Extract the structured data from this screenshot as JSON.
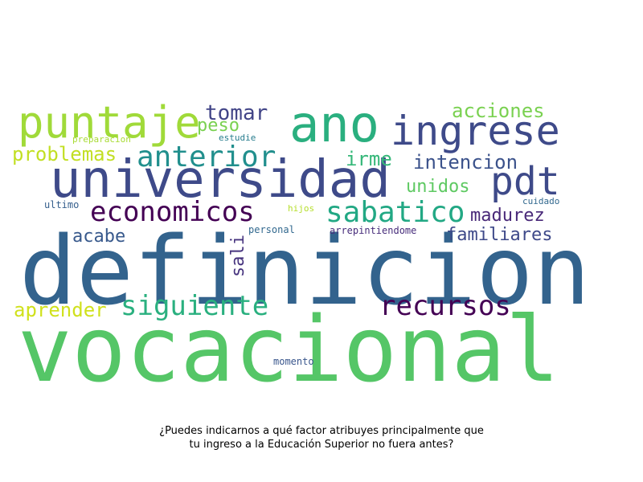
{
  "caption": {
    "line1": "¿Puedes indicarnos a qué factor atribuyes principalmente que",
    "line2": "tu ingreso a la Educación Superior no fuera antes?"
  },
  "words": [
    {
      "id": "definicion",
      "text": "definicion",
      "color": "#33638d"
    },
    {
      "id": "vocacional",
      "text": "vocacional",
      "color": "#55c667"
    },
    {
      "id": "universidad",
      "text": "universidad",
      "color": "#3e4a89"
    },
    {
      "id": "ano",
      "text": "ano",
      "color": "#2aaf7f"
    },
    {
      "id": "puntaje",
      "text": "puntaje",
      "color": "#a0da39"
    },
    {
      "id": "ingrese",
      "text": "ingrese",
      "color": "#3e4a89"
    },
    {
      "id": "pdt",
      "text": "pdt",
      "color": "#3e4a89"
    },
    {
      "id": "anterior",
      "text": "anterior",
      "color": "#218f8d"
    },
    {
      "id": "economicos",
      "text": "economicos",
      "color": "#440154"
    },
    {
      "id": "sabatico",
      "text": "sabatico",
      "color": "#22a884"
    },
    {
      "id": "siguiente",
      "text": "siguiente",
      "color": "#2ab07f"
    },
    {
      "id": "recursos",
      "text": "recursos",
      "color": "#440154"
    },
    {
      "id": "tomar",
      "text": "tomar",
      "color": "#414487"
    },
    {
      "id": "peso",
      "text": "peso",
      "color": "#7ad151"
    },
    {
      "id": "acciones",
      "text": "acciones",
      "color": "#7ad151"
    },
    {
      "id": "problemas",
      "text": "problemas",
      "color": "#c2df23"
    },
    {
      "id": "irme",
      "text": "irme",
      "color": "#35b779"
    },
    {
      "id": "intencion",
      "text": "intencion",
      "color": "#3b528b"
    },
    {
      "id": "unidos",
      "text": "unidos",
      "color": "#5ec962"
    },
    {
      "id": "madurez",
      "text": "madurez",
      "color": "#482878"
    },
    {
      "id": "familiares",
      "text": "familiares",
      "color": "#3e4989"
    },
    {
      "id": "acabe",
      "text": "acabe",
      "color": "#38598c"
    },
    {
      "id": "sali",
      "text": "sali",
      "color": "#46337e"
    },
    {
      "id": "aprender",
      "text": "aprender",
      "color": "#d0e11c"
    },
    {
      "id": "preparacion",
      "text": "preparacion",
      "color": "#a8db34"
    },
    {
      "id": "estudie",
      "text": "estudie",
      "color": "#287d8e"
    },
    {
      "id": "cuidado",
      "text": "cuidado",
      "color": "#31688e"
    },
    {
      "id": "ultimo",
      "text": "ultimo",
      "color": "#355f8d"
    },
    {
      "id": "hijos",
      "text": "hijos",
      "color": "#b5de2b"
    },
    {
      "id": "personal",
      "text": "personal",
      "color": "#31688e"
    },
    {
      "id": "arrepintiendome",
      "text": "arrepintiendome",
      "color": "#472d7b"
    },
    {
      "id": "momento",
      "text": "momento",
      "color": "#39568c"
    }
  ]
}
